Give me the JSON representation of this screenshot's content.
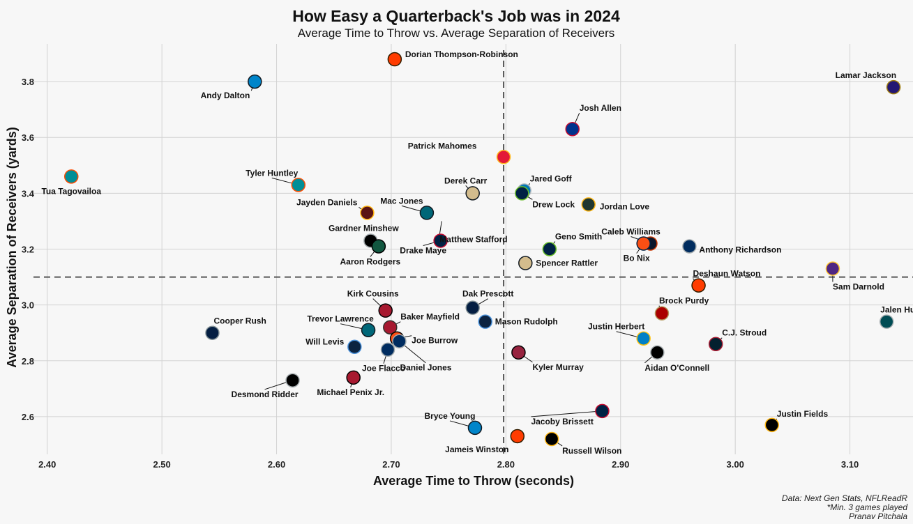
{
  "chart_data": {
    "type": "scatter",
    "title": "How Easy a Quarterback's Job was in 2024",
    "subtitle": "Average Time to Throw vs. Average Separation of Receivers",
    "xlabel": "Average Time to Throw (seconds)",
    "ylabel": "Average Separation of Receivers (yards)",
    "xlim": [
      2.388,
      3.155
    ],
    "ylim": [
      2.465,
      3.935
    ],
    "xticks": [
      "2.40",
      "2.50",
      "2.60",
      "2.70",
      "2.80",
      "2.90",
      "3.00",
      "3.10"
    ],
    "yticks": [
      "2.6",
      "2.8",
      "3.0",
      "3.2",
      "3.4",
      "3.6",
      "3.8"
    ],
    "grid": true,
    "reference_lines": {
      "x": 2.798,
      "y": 3.1
    },
    "caption": [
      "Data: Next Gen Stats, NFLReadR",
      "*Min. 3 games played",
      "Pranav Pitchala"
    ],
    "points": [
      {
        "name": "Lamar Jackson",
        "x": 3.138,
        "y": 3.78,
        "fill": "#241773",
        "stroke": "#9E7C0C",
        "lab": "Lamar Jackson"
      },
      {
        "name": "Dorian Thompson-Robinson",
        "x": 2.703,
        "y": 3.88,
        "fill": "#FF3C00",
        "stroke": "#311D00",
        "lab": "Dorian Thompson-Robinson"
      },
      {
        "name": "Andy Dalton",
        "x": 2.581,
        "y": 3.8,
        "fill": "#0085CA",
        "stroke": "#101820",
        "lab": "Andy Dalton"
      },
      {
        "name": "Josh Allen",
        "x": 2.858,
        "y": 3.63,
        "fill": "#00338D",
        "stroke": "#C60C30",
        "lab": "Josh Allen"
      },
      {
        "name": "Patrick Mahomes",
        "x": 2.798,
        "y": 3.53,
        "fill": "#E31837",
        "stroke": "#FFB81C",
        "lab": "Patrick Mahomes"
      },
      {
        "name": "Tua Tagovailoa",
        "x": 2.421,
        "y": 3.46,
        "fill": "#008E97",
        "stroke": "#FC4C02",
        "lab": "Tua Tagovailoa"
      },
      {
        "name": "Tyler Huntley",
        "x": 2.619,
        "y": 3.43,
        "fill": "#008E97",
        "stroke": "#FC4C02",
        "lab": "Tyler Huntley"
      },
      {
        "name": "Jared Goff",
        "x": 2.816,
        "y": 3.41,
        "fill": "#0076B6",
        "stroke": "#B0B7BC",
        "lab": "Jared Goff"
      },
      {
        "name": "Derek Carr",
        "x": 2.771,
        "y": 3.4,
        "fill": "#D3BC8D",
        "stroke": "#101820",
        "lab": "Derek Carr"
      },
      {
        "name": "Drew Lock",
        "x": 2.814,
        "y": 3.4,
        "fill": "#002244",
        "stroke": "#69BE28",
        "lab": "Drew Lock"
      },
      {
        "name": "Jordan Love",
        "x": 2.872,
        "y": 3.36,
        "fill": "#203731",
        "stroke": "#FFB612",
        "lab": "Jordan Love"
      },
      {
        "name": "Jayden Daniels",
        "x": 2.679,
        "y": 3.33,
        "fill": "#5A1414",
        "stroke": "#FFB612",
        "lab": "Jayden Daniels"
      },
      {
        "name": "Mac Jones",
        "x": 2.731,
        "y": 3.33,
        "fill": "#006778",
        "stroke": "#101820",
        "lab": "Mac Jones"
      },
      {
        "name": "Matthew Stafford",
        "x": 2.744,
        "y": 3.3,
        "fill": "#003594",
        "stroke": "#FFA300",
        "lab": "Matthew Stafford",
        "hidden": true
      },
      {
        "name": "Gardner Minshew",
        "x": 2.682,
        "y": 3.23,
        "fill": "#000000",
        "stroke": "#A5ACAF",
        "lab": "Gardner Minshew"
      },
      {
        "name": "Aaron Rodgers",
        "x": 2.689,
        "y": 3.21,
        "fill": "#125740",
        "stroke": "#000000",
        "lab": "Aaron Rodgers"
      },
      {
        "name": "Drake Maye",
        "x": 2.743,
        "y": 3.23,
        "fill": "#002244",
        "stroke": "#C60C30",
        "lab": "Drake Maye"
      },
      {
        "name": "Geno Smith",
        "x": 2.838,
        "y": 3.2,
        "fill": "#002244",
        "stroke": "#69BE28",
        "lab": "Geno Smith"
      },
      {
        "name": "Caleb Williams",
        "x": 2.926,
        "y": 3.22,
        "fill": "#0B162A",
        "stroke": "#C83803",
        "lab": "Caleb Williams"
      },
      {
        "name": "Bo Nix",
        "x": 2.92,
        "y": 3.22,
        "fill": "#FB4F14",
        "stroke": "#002244",
        "lab": "Bo Nix"
      },
      {
        "name": "Anthony Richardson",
        "x": 2.96,
        "y": 3.21,
        "fill": "#002C5F",
        "stroke": "#A2AAAD",
        "lab": "Anthony Richardson"
      },
      {
        "name": "Spencer Rattler",
        "x": 2.817,
        "y": 3.15,
        "fill": "#D3BC8D",
        "stroke": "#101820",
        "lab": "Spencer Rattler"
      },
      {
        "name": "Sam Darnold",
        "x": 3.085,
        "y": 3.13,
        "fill": "#4F2683",
        "stroke": "#FFC62F",
        "lab": "Sam Darnold"
      },
      {
        "name": "Deshaun Watson",
        "x": 2.968,
        "y": 3.07,
        "fill": "#FF3C00",
        "stroke": "#311D00",
        "lab": "Deshaun Watson"
      },
      {
        "name": "Kirk Cousins",
        "x": 2.695,
        "y": 2.98,
        "fill": "#A71930",
        "stroke": "#000000",
        "lab": "Kirk Cousins"
      },
      {
        "name": "Dak Prescott",
        "x": 2.771,
        "y": 2.99,
        "fill": "#041E42",
        "stroke": "#869397",
        "lab": "Dak Prescott"
      },
      {
        "name": "Brock Purdy",
        "x": 2.936,
        "y": 2.97,
        "fill": "#AA0000",
        "stroke": "#B3995D",
        "lab": "Brock Purdy"
      },
      {
        "name": "Jalen Hurts",
        "x": 3.132,
        "y": 2.94,
        "fill": "#004C54",
        "stroke": "#A5ACAF",
        "lab": "Jalen Hurts"
      },
      {
        "name": "Cooper Rush",
        "x": 2.544,
        "y": 2.9,
        "fill": "#041E42",
        "stroke": "#869397",
        "lab": "Cooper Rush"
      },
      {
        "name": "Trevor Lawrence",
        "x": 2.68,
        "y": 2.91,
        "fill": "#006778",
        "stroke": "#101820",
        "lab": "Trevor Lawrence"
      },
      {
        "name": "Baker Mayfield",
        "x": 2.699,
        "y": 2.92,
        "fill": "#A71930",
        "stroke": "#34302B",
        "lab": "Baker Mayfield"
      },
      {
        "name": "Mason Rudolph",
        "x": 2.782,
        "y": 2.94,
        "fill": "#0C2340",
        "stroke": "#4B92DB",
        "lab": "Mason Rudolph"
      },
      {
        "name": "Justin Herbert",
        "x": 2.92,
        "y": 2.88,
        "fill": "#0080C6",
        "stroke": "#FFC20E",
        "lab": "Justin Herbert"
      },
      {
        "name": "C.J. Stroud",
        "x": 2.983,
        "y": 2.86,
        "fill": "#03202F",
        "stroke": "#A71930",
        "lab": "C.J. Stroud"
      },
      {
        "name": "Will Levis",
        "x": 2.668,
        "y": 2.85,
        "fill": "#0C2340",
        "stroke": "#4B92DB",
        "lab": "Will Levis"
      },
      {
        "name": "Joe Burrow",
        "x": 2.705,
        "y": 2.88,
        "fill": "#FB4F14",
        "stroke": "#000000",
        "lab": "Joe Burrow"
      },
      {
        "name": "Daniel Jones",
        "x": 2.707,
        "y": 2.87,
        "fill": "#002C5F",
        "stroke": "#A2AAAD",
        "lab": "Daniel Jones"
      },
      {
        "name": "Joe Flacco",
        "x": 2.697,
        "y": 2.84,
        "fill": "#002C5F",
        "stroke": "#A2AAAD",
        "lab": "Joe Flacco"
      },
      {
        "name": "Kyler Murray",
        "x": 2.811,
        "y": 2.83,
        "fill": "#97233F",
        "stroke": "#000000",
        "lab": "Kyler Murray"
      },
      {
        "name": "Aidan O'Connell",
        "x": 2.932,
        "y": 2.83,
        "fill": "#000000",
        "stroke": "#A5ACAF",
        "lab": "Aidan O'Connell"
      },
      {
        "name": "Desmond Ridder",
        "x": 2.614,
        "y": 2.73,
        "fill": "#000000",
        "stroke": "#A5ACAF",
        "lab": "Desmond Ridder"
      },
      {
        "name": "Michael Penix Jr.",
        "x": 2.667,
        "y": 2.74,
        "fill": "#A71930",
        "stroke": "#000000",
        "lab": "Michael Penix Jr."
      },
      {
        "name": "Bryce Young",
        "x": 2.773,
        "y": 2.56,
        "fill": "#0085CA",
        "stroke": "#101820",
        "lab": "Bryce Young"
      },
      {
        "name": "Jacoby Brissett",
        "x": 2.884,
        "y": 2.62,
        "fill": "#002244",
        "stroke": "#C60C30",
        "lab": "Jacoby Brissett"
      },
      {
        "name": "Jameis Winston",
        "x": 2.81,
        "y": 2.53,
        "fill": "#FF3C00",
        "stroke": "#311D00",
        "lab": "Jameis Winston"
      },
      {
        "name": "Russell Wilson",
        "x": 2.84,
        "y": 2.52,
        "fill": "#000000",
        "stroke": "#FFB612",
        "lab": "Russell Wilson"
      },
      {
        "name": "Justin Fields",
        "x": 3.032,
        "y": 2.57,
        "fill": "#000000",
        "stroke": "#FFB612",
        "lab": "Justin Fields"
      }
    ]
  }
}
